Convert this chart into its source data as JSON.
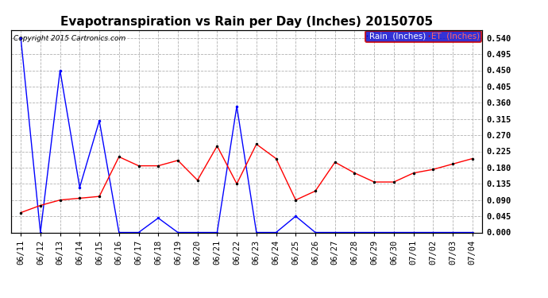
{
  "title": "Evapotranspiration vs Rain per Day (Inches) 20150705",
  "copyright": "Copyright 2015 Cartronics.com",
  "background_color": "#ffffff",
  "plot_bg_color": "#ffffff",
  "grid_color": "#aaaaaa",
  "title_fontsize": 11,
  "tick_fontsize": 7.5,
  "legend_labels": [
    "Rain  (Inches)",
    "ET  (Inches)"
  ],
  "dates": [
    "06/11",
    "06/12",
    "06/13",
    "06/14",
    "06/15",
    "06/16",
    "06/17",
    "06/18",
    "06/19",
    "06/20",
    "06/21",
    "06/22",
    "06/23",
    "06/24",
    "06/25",
    "06/26",
    "06/27",
    "06/28",
    "06/29",
    "06/30",
    "07/01",
    "07/02",
    "07/03",
    "07/04"
  ],
  "rain": [
    0.54,
    0.0,
    0.45,
    0.125,
    0.31,
    0.0,
    0.0,
    0.04,
    0.0,
    0.0,
    0.0,
    0.35,
    0.0,
    0.0,
    0.045,
    0.0,
    0.0,
    0.0,
    0.0,
    0.0,
    0.0,
    0.0,
    0.0,
    0.0
  ],
  "et": [
    0.055,
    0.075,
    0.09,
    0.095,
    0.1,
    0.21,
    0.185,
    0.185,
    0.2,
    0.145,
    0.24,
    0.135,
    0.245,
    0.205,
    0.09,
    0.115,
    0.195,
    0.165,
    0.14,
    0.14,
    0.165,
    0.175,
    0.19,
    0.205
  ],
  "ymin": 0.0,
  "ymax": 0.5625,
  "yticks": [
    0.0,
    0.045,
    0.09,
    0.135,
    0.18,
    0.225,
    0.27,
    0.315,
    0.36,
    0.405,
    0.45,
    0.495,
    0.54
  ]
}
